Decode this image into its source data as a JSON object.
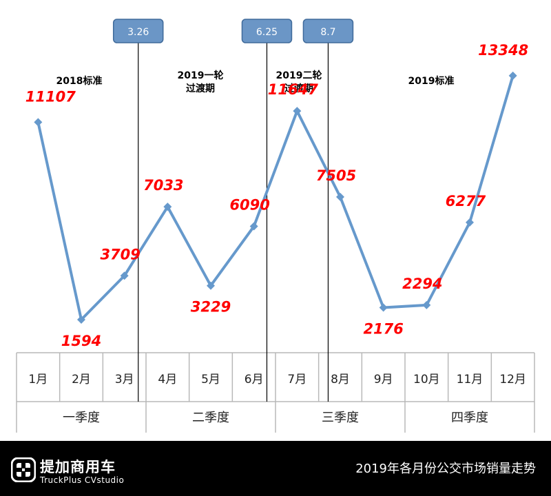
{
  "chart_data": {
    "type": "line",
    "categories": [
      "1月",
      "2月",
      "3月",
      "4月",
      "5月",
      "6月",
      "7月",
      "8月",
      "9月",
      "10月",
      "11月",
      "12月"
    ],
    "quarters": [
      "一季度",
      "二季度",
      "三季度",
      "四季度"
    ],
    "series": [
      {
        "values": [
          11107,
          1594,
          3709,
          7033,
          3229,
          6090,
          11647,
          7505,
          2176,
          2294,
          6277,
          13348
        ]
      }
    ],
    "ylim": [
      0,
      16000
    ],
    "grid": false,
    "line_color": "#6699cc",
    "label_color": "#ff0000",
    "markers": [
      {
        "label": "3.26",
        "after_month": "3月",
        "fraction": 0.82
      },
      {
        "label": "6.25",
        "after_month": "6月",
        "fraction": 0.8
      },
      {
        "label": "8.7",
        "after_month": "8月",
        "fraction": 0.22
      }
    ],
    "periods": [
      {
        "lines": [
          "2018标准"
        ]
      },
      {
        "lines": [
          "2019一轮",
          "过渡期"
        ]
      },
      {
        "lines": [
          "2019二轮",
          "过渡期"
        ]
      },
      {
        "lines": [
          "2019标准"
        ]
      }
    ]
  },
  "footer": {
    "brand_name": "提加商用车",
    "brand_sub": "TruckPlus CVstudio",
    "caption": "2019年各月份公交市场销量走势",
    "logo_icon": "truckplus-logo-icon"
  }
}
